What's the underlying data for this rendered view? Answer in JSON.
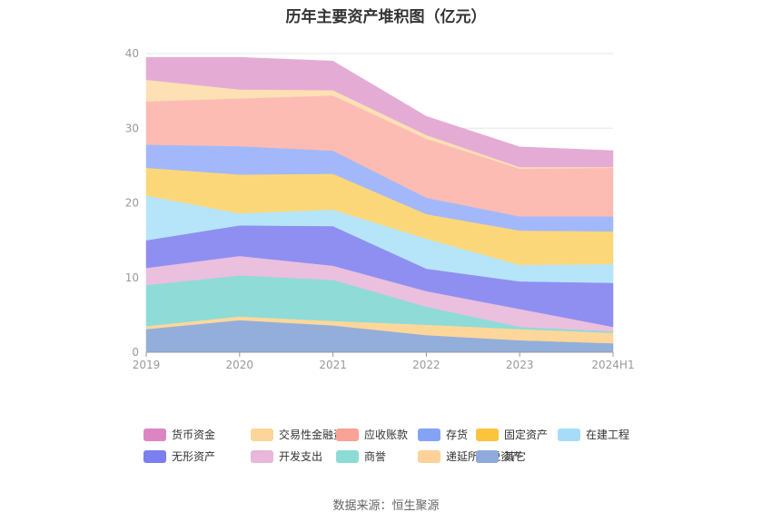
{
  "chart_data": {
    "type": "area",
    "stacked": true,
    "title": "历年主要资产堆积图（亿元）",
    "x": [
      "2019",
      "2020",
      "2021",
      "2022",
      "2023",
      "2024H1"
    ],
    "ylim": [
      0,
      40
    ],
    "yticks": [
      0,
      10,
      20,
      30,
      40
    ],
    "grid": true,
    "legend_position": "bottom",
    "series": [
      {
        "name": "其它",
        "color": "#93aedb",
        "values": [
          3.1,
          4.3,
          3.6,
          2.3,
          1.6,
          1.2
        ]
      },
      {
        "name": "递延所得税资产",
        "color": "#fdd79a",
        "values": [
          0.4,
          0.5,
          0.6,
          1.4,
          1.5,
          1.4
        ]
      },
      {
        "name": "商誉",
        "color": "#8fdbd8",
        "values": [
          5.5,
          5.5,
          5.5,
          2.4,
          0.3,
          0.2
        ]
      },
      {
        "name": "开发支出",
        "color": "#ebbfde",
        "values": [
          2.3,
          2.6,
          1.9,
          2.1,
          2.4,
          0.6
        ]
      },
      {
        "name": "无形资产",
        "color": "#8f8ff1",
        "values": [
          3.7,
          4.1,
          5.3,
          3.0,
          3.7,
          5.9
        ]
      },
      {
        "name": "在建工程",
        "color": "#b6e5fa",
        "values": [
          6.0,
          1.6,
          2.2,
          4.0,
          2.2,
          2.5
        ]
      },
      {
        "name": "固定资产",
        "color": "#fcd77a",
        "values": [
          3.7,
          5.2,
          4.8,
          3.3,
          4.6,
          4.4
        ]
      },
      {
        "name": "存货",
        "color": "#a3b8fa",
        "values": [
          3.1,
          3.8,
          3.1,
          2.2,
          1.9,
          2.0
        ]
      },
      {
        "name": "应收账款",
        "color": "#fcbcb4",
        "values": [
          5.8,
          6.4,
          7.4,
          7.9,
          6.4,
          6.5
        ]
      },
      {
        "name": "交易性金融资产",
        "color": "#fde0b4",
        "values": [
          2.9,
          1.2,
          0.7,
          0.5,
          0.2,
          0.1
        ]
      },
      {
        "name": "货币资金",
        "color": "#e4acd5",
        "values": [
          3.0,
          4.3,
          3.9,
          2.5,
          2.7,
          2.2
        ]
      }
    ],
    "legend_order": [
      "货币资金",
      "交易性金融资产",
      "应收账款",
      "存货",
      "固定资产",
      "在建工程",
      "无形资产",
      "开发支出",
      "商誉",
      "递延所得税资产",
      "其它"
    ],
    "legend_colors": {
      "货币资金": "#db86c3",
      "交易性金融资产": "#fdd49a",
      "应收账款": "#f8a395",
      "存货": "#85a3f5",
      "固定资产": "#fcc33c",
      "在建工程": "#a7dcf8",
      "无形资产": "#7b7ff0",
      "开发支出": "#e8b7da",
      "商誉": "#8ddbd5",
      "递延所得税资产": "#fdd29a",
      "其它": "#8fabdb"
    }
  },
  "source_text": "数据来源：恒生聚源"
}
